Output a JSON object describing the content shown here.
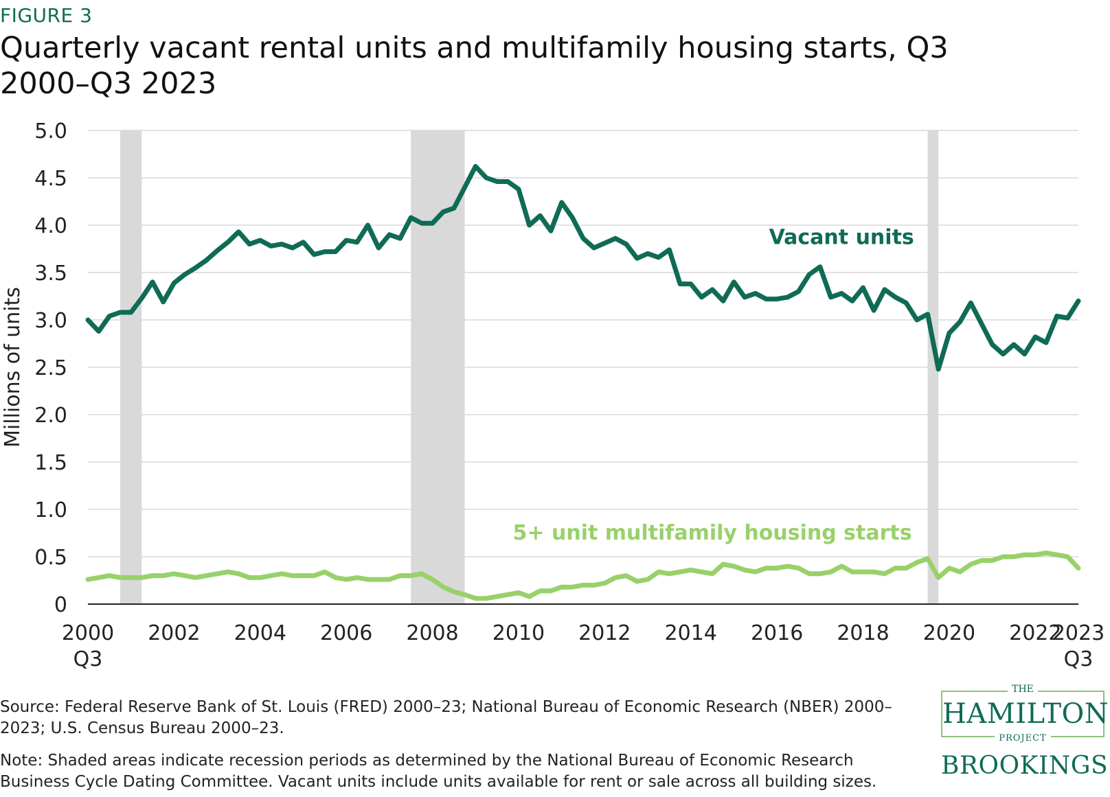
{
  "figure_label": "FIGURE 3",
  "source_text": "Source: Federal Reserve Bank of St. Louis (FRED) 2000–23; National Bureau of Economic Research (NBER) 2000–2023; U.S. Census Bureau 2000–23.",
  "note_text": "Note: Shaded areas indicate recession periods as determined by the National Bureau of Economic Research Business Cycle Dating Committee. Vacant units include units available for rent or sale across all building sizes.",
  "logos": {
    "hamilton_the": "THE",
    "hamilton_main": "HAMILTON",
    "hamilton_project": "PROJECT",
    "brookings": "BROOKINGS"
  },
  "colors": {
    "vacant": "#0f6b55",
    "starts": "#98d16a",
    "recession": "#d9d9d9",
    "grid": "#d9d9d9",
    "axis": "#222222"
  },
  "chart_data": {
    "type": "line",
    "title": "Quarterly vacant rental units and multifamily housing starts, Q3 2000–Q3 2023",
    "ylabel": "Millions of units",
    "xlabel": "",
    "ylim": [
      0,
      5.0
    ],
    "xlim": [
      2000.5,
      2023.5
    ],
    "y_ticks": [
      0,
      0.5,
      1.0,
      1.5,
      2.0,
      2.5,
      3.0,
      3.5,
      4.0,
      4.5,
      5.0
    ],
    "y_tick_labels": [
      "0",
      "0.5",
      "1.0",
      "1.5",
      "2.0",
      "2.5",
      "3.0",
      "3.5",
      "4.0",
      "4.5",
      "5.0"
    ],
    "x_ticks": [
      {
        "x": 2000.5,
        "label": "2000",
        "sub": "Q3"
      },
      {
        "x": 2002.5,
        "label": "2002",
        "sub": ""
      },
      {
        "x": 2004.5,
        "label": "2004",
        "sub": ""
      },
      {
        "x": 2006.5,
        "label": "2006",
        "sub": ""
      },
      {
        "x": 2008.5,
        "label": "2008",
        "sub": ""
      },
      {
        "x": 2010.5,
        "label": "2010",
        "sub": ""
      },
      {
        "x": 2012.5,
        "label": "2012",
        "sub": ""
      },
      {
        "x": 2014.5,
        "label": "2014",
        "sub": ""
      },
      {
        "x": 2016.5,
        "label": "2016",
        "sub": ""
      },
      {
        "x": 2018.5,
        "label": "2018",
        "sub": ""
      },
      {
        "x": 2020.5,
        "label": "2020",
        "sub": ""
      },
      {
        "x": 2022.5,
        "label": "2022",
        "sub": ""
      },
      {
        "x": 2023.5,
        "label": "2023",
        "sub": "Q3"
      }
    ],
    "grid": true,
    "legend": "inline labels",
    "recessions": [
      {
        "start": 2001.25,
        "end": 2001.75
      },
      {
        "start": 2008.0,
        "end": 2009.25
      },
      {
        "start": 2020.0,
        "end": 2020.25
      }
    ],
    "series": [
      {
        "name": "Vacant units",
        "label_at": [
          2018.0,
          3.8
        ],
        "values": [
          [
            2000.5,
            3.0
          ],
          [
            2000.75,
            2.88
          ],
          [
            2001.0,
            3.04
          ],
          [
            2001.25,
            3.08
          ],
          [
            2001.5,
            3.08
          ],
          [
            2001.75,
            3.23
          ],
          [
            2002.0,
            3.4
          ],
          [
            2002.25,
            3.19
          ],
          [
            2002.5,
            3.39
          ],
          [
            2002.75,
            3.48
          ],
          [
            2003.0,
            3.55
          ],
          [
            2003.25,
            3.63
          ],
          [
            2003.5,
            3.73
          ],
          [
            2003.75,
            3.82
          ],
          [
            2004.0,
            3.93
          ],
          [
            2004.25,
            3.8
          ],
          [
            2004.5,
            3.84
          ],
          [
            2004.75,
            3.78
          ],
          [
            2005.0,
            3.8
          ],
          [
            2005.25,
            3.76
          ],
          [
            2005.5,
            3.82
          ],
          [
            2005.75,
            3.69
          ],
          [
            2006.0,
            3.72
          ],
          [
            2006.25,
            3.72
          ],
          [
            2006.5,
            3.84
          ],
          [
            2006.75,
            3.82
          ],
          [
            2007.0,
            4.0
          ],
          [
            2007.25,
            3.76
          ],
          [
            2007.5,
            3.9
          ],
          [
            2007.75,
            3.86
          ],
          [
            2008.0,
            4.08
          ],
          [
            2008.25,
            4.02
          ],
          [
            2008.5,
            4.02
          ],
          [
            2008.75,
            4.14
          ],
          [
            2009.0,
            4.18
          ],
          [
            2009.25,
            4.4
          ],
          [
            2009.5,
            4.62
          ],
          [
            2009.75,
            4.5
          ],
          [
            2010.0,
            4.46
          ],
          [
            2010.25,
            4.46
          ],
          [
            2010.5,
            4.38
          ],
          [
            2010.75,
            4.0
          ],
          [
            2011.0,
            4.1
          ],
          [
            2011.25,
            3.94
          ],
          [
            2011.5,
            4.24
          ],
          [
            2011.75,
            4.08
          ],
          [
            2012.0,
            3.86
          ],
          [
            2012.25,
            3.76
          ],
          [
            2012.5,
            3.81
          ],
          [
            2012.75,
            3.86
          ],
          [
            2013.0,
            3.8
          ],
          [
            2013.25,
            3.65
          ],
          [
            2013.5,
            3.7
          ],
          [
            2013.75,
            3.66
          ],
          [
            2014.0,
            3.74
          ],
          [
            2014.25,
            3.38
          ],
          [
            2014.5,
            3.38
          ],
          [
            2014.75,
            3.24
          ],
          [
            2015.0,
            3.32
          ],
          [
            2015.25,
            3.2
          ],
          [
            2015.5,
            3.4
          ],
          [
            2015.75,
            3.24
          ],
          [
            2016.0,
            3.28
          ],
          [
            2016.25,
            3.22
          ],
          [
            2016.5,
            3.22
          ],
          [
            2016.75,
            3.24
          ],
          [
            2017.0,
            3.3
          ],
          [
            2017.25,
            3.48
          ],
          [
            2017.5,
            3.56
          ],
          [
            2017.75,
            3.24
          ],
          [
            2018.0,
            3.28
          ],
          [
            2018.25,
            3.2
          ],
          [
            2018.5,
            3.34
          ],
          [
            2018.75,
            3.1
          ],
          [
            2019.0,
            3.32
          ],
          [
            2019.25,
            3.24
          ],
          [
            2019.5,
            3.18
          ],
          [
            2019.75,
            3.0
          ],
          [
            2020.0,
            3.06
          ],
          [
            2020.25,
            2.48
          ],
          [
            2020.5,
            2.86
          ],
          [
            2020.75,
            2.98
          ],
          [
            2021.0,
            3.18
          ],
          [
            2021.25,
            2.96
          ],
          [
            2021.5,
            2.74
          ],
          [
            2021.75,
            2.64
          ],
          [
            2022.0,
            2.74
          ],
          [
            2022.25,
            2.64
          ],
          [
            2022.5,
            2.82
          ],
          [
            2022.75,
            2.76
          ],
          [
            2023.0,
            3.04
          ],
          [
            2023.25,
            3.02
          ],
          [
            2023.5,
            3.2
          ]
        ]
      },
      {
        "name": "5+ unit multifamily housing starts",
        "label_at": [
          2015.0,
          0.68
        ],
        "values": [
          [
            2000.5,
            0.26
          ],
          [
            2000.75,
            0.28
          ],
          [
            2001.0,
            0.3
          ],
          [
            2001.25,
            0.28
          ],
          [
            2001.5,
            0.28
          ],
          [
            2001.75,
            0.28
          ],
          [
            2002.0,
            0.3
          ],
          [
            2002.25,
            0.3
          ],
          [
            2002.5,
            0.32
          ],
          [
            2002.75,
            0.3
          ],
          [
            2003.0,
            0.28
          ],
          [
            2003.25,
            0.3
          ],
          [
            2003.5,
            0.32
          ],
          [
            2003.75,
            0.34
          ],
          [
            2004.0,
            0.32
          ],
          [
            2004.25,
            0.28
          ],
          [
            2004.5,
            0.28
          ],
          [
            2004.75,
            0.3
          ],
          [
            2005.0,
            0.32
          ],
          [
            2005.25,
            0.3
          ],
          [
            2005.5,
            0.3
          ],
          [
            2005.75,
            0.3
          ],
          [
            2006.0,
            0.34
          ],
          [
            2006.25,
            0.28
          ],
          [
            2006.5,
            0.26
          ],
          [
            2006.75,
            0.28
          ],
          [
            2007.0,
            0.26
          ],
          [
            2007.25,
            0.26
          ],
          [
            2007.5,
            0.26
          ],
          [
            2007.75,
            0.3
          ],
          [
            2008.0,
            0.3
          ],
          [
            2008.25,
            0.32
          ],
          [
            2008.5,
            0.26
          ],
          [
            2008.75,
            0.18
          ],
          [
            2009.0,
            0.13
          ],
          [
            2009.25,
            0.1
          ],
          [
            2009.5,
            0.06
          ],
          [
            2009.75,
            0.06
          ],
          [
            2010.0,
            0.08
          ],
          [
            2010.25,
            0.1
          ],
          [
            2010.5,
            0.12
          ],
          [
            2010.75,
            0.08
          ],
          [
            2011.0,
            0.14
          ],
          [
            2011.25,
            0.14
          ],
          [
            2011.5,
            0.18
          ],
          [
            2011.75,
            0.18
          ],
          [
            2012.0,
            0.2
          ],
          [
            2012.25,
            0.2
          ],
          [
            2012.5,
            0.22
          ],
          [
            2012.75,
            0.28
          ],
          [
            2013.0,
            0.3
          ],
          [
            2013.25,
            0.24
          ],
          [
            2013.5,
            0.26
          ],
          [
            2013.75,
            0.34
          ],
          [
            2014.0,
            0.32
          ],
          [
            2014.25,
            0.34
          ],
          [
            2014.5,
            0.36
          ],
          [
            2014.75,
            0.34
          ],
          [
            2015.0,
            0.32
          ],
          [
            2015.25,
            0.42
          ],
          [
            2015.5,
            0.4
          ],
          [
            2015.75,
            0.36
          ],
          [
            2016.0,
            0.34
          ],
          [
            2016.25,
            0.38
          ],
          [
            2016.5,
            0.38
          ],
          [
            2016.75,
            0.4
          ],
          [
            2017.0,
            0.38
          ],
          [
            2017.25,
            0.32
          ],
          [
            2017.5,
            0.32
          ],
          [
            2017.75,
            0.34
          ],
          [
            2018.0,
            0.4
          ],
          [
            2018.25,
            0.34
          ],
          [
            2018.5,
            0.34
          ],
          [
            2018.75,
            0.34
          ],
          [
            2019.0,
            0.32
          ],
          [
            2019.25,
            0.38
          ],
          [
            2019.5,
            0.38
          ],
          [
            2019.75,
            0.44
          ],
          [
            2020.0,
            0.48
          ],
          [
            2020.25,
            0.28
          ],
          [
            2020.5,
            0.38
          ],
          [
            2020.75,
            0.34
          ],
          [
            2021.0,
            0.42
          ],
          [
            2021.25,
            0.46
          ],
          [
            2021.5,
            0.46
          ],
          [
            2021.75,
            0.5
          ],
          [
            2022.0,
            0.5
          ],
          [
            2022.25,
            0.52
          ],
          [
            2022.5,
            0.52
          ],
          [
            2022.75,
            0.54
          ],
          [
            2023.0,
            0.52
          ],
          [
            2023.25,
            0.5
          ],
          [
            2023.5,
            0.38
          ]
        ]
      }
    ]
  }
}
